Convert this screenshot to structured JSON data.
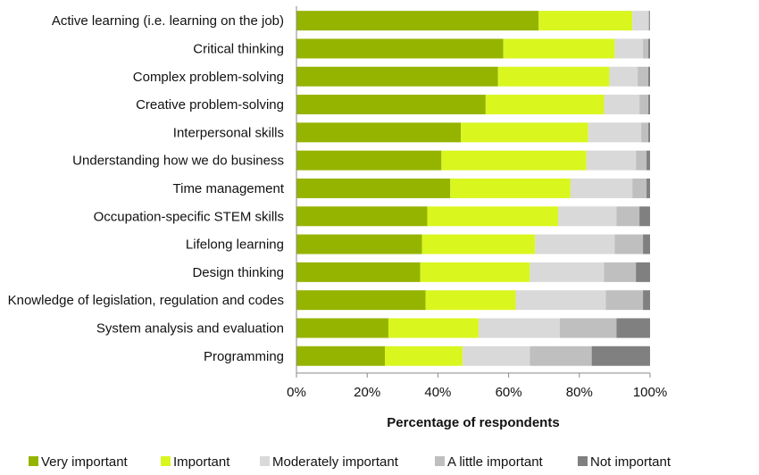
{
  "chart_data": {
    "type": "bar",
    "orientation": "horizontal",
    "stacked": true,
    "title": "",
    "xlabel": "Percentage of respondents",
    "ylabel": "",
    "xlim": [
      0,
      100
    ],
    "x_ticks": [
      "0%",
      "20%",
      "40%",
      "60%",
      "80%",
      "100%"
    ],
    "grid": false,
    "legend_position": "bottom",
    "categories": [
      "Active learning (i.e. learning on the job)",
      "Critical thinking",
      "Complex problem-solving",
      "Creative problem-solving",
      "Interpersonal skills",
      "Understanding how we do business",
      "Time management",
      "Occupation-specific STEM skills",
      "Lifelong learning",
      "Design thinking",
      "Knowledge of legislation, regulation and codes",
      "System analysis and evaluation",
      "Programming"
    ],
    "series": [
      {
        "name": "Very important",
        "color": "#95b400",
        "values": [
          68.5,
          58.5,
          57,
          53.5,
          46.5,
          41,
          43.5,
          37,
          35.5,
          35,
          36.5,
          26,
          25
        ]
      },
      {
        "name": "Important",
        "color": "#d9f61f",
        "values": [
          26.5,
          31.5,
          31.5,
          33.5,
          36,
          41,
          34,
          37,
          32,
          31,
          25.5,
          25.5,
          22
        ]
      },
      {
        "name": "Moderately important",
        "color": "#d9d9d9",
        "values": [
          4.5,
          8,
          8,
          10,
          15,
          14,
          17.5,
          16.5,
          22.5,
          21,
          25.5,
          23,
          19
        ]
      },
      {
        "name": "A little important",
        "color": "#bfbfbf",
        "values": [
          0.3,
          1.5,
          3,
          2.5,
          2,
          3,
          4,
          6.5,
          8,
          9,
          10.5,
          16,
          17.5
        ]
      },
      {
        "name": "Not important",
        "color": "#808080",
        "values": [
          0.2,
          0.5,
          0.5,
          0.5,
          0.5,
          1,
          1,
          3,
          2,
          4,
          2,
          9.5,
          16.5
        ]
      }
    ]
  }
}
